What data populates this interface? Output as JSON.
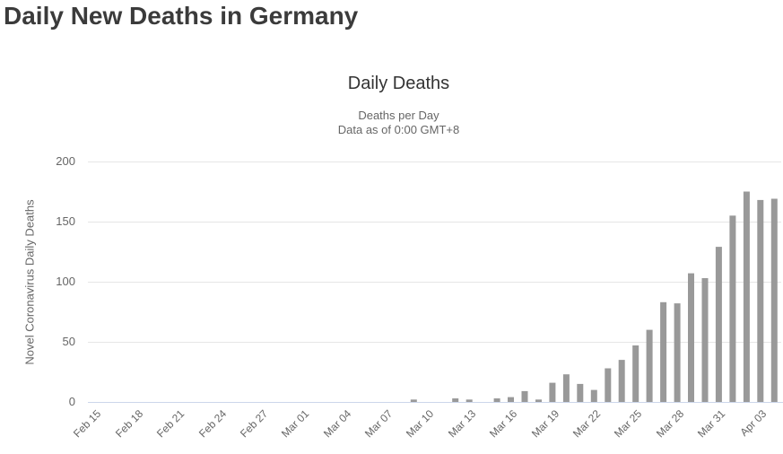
{
  "page": {
    "title": "Daily New Deaths in Germany"
  },
  "chart": {
    "title": "Daily Deaths",
    "subtitle_line1": "Deaths per Day",
    "subtitle_line2": "Data as of 0:00 GMT+8",
    "y_axis_title": "Novel Coronavirus Daily Deaths",
    "colors": {
      "bar": "#999999",
      "grid": "#e6e6e6",
      "axis_line": "#ccd6eb",
      "label_text": "#666666",
      "title_text": "#333333",
      "page_title_text": "#3b3b3b",
      "background": "#ffffff"
    }
  },
  "chart_data": {
    "type": "bar",
    "title": "Daily Deaths",
    "subtitle": "Deaths per Day - Data as of 0:00 GMT+8",
    "xlabel": "",
    "ylabel": "Novel Coronavirus Daily Deaths",
    "ylim": [
      0,
      200
    ],
    "yticks": [
      0,
      50,
      100,
      150,
      200
    ],
    "grid": true,
    "legend": false,
    "x_tick_interval": 3,
    "x_tick_labels": [
      "Feb 15",
      "Feb 18",
      "Feb 21",
      "Feb 24",
      "Feb 27",
      "Mar 01",
      "Mar 04",
      "Mar 07",
      "Mar 10",
      "Mar 13",
      "Mar 16",
      "Mar 19",
      "Mar 22",
      "Mar 25",
      "Mar 28",
      "Mar 31",
      "Apr 03"
    ],
    "categories": [
      "Feb 15",
      "Feb 16",
      "Feb 17",
      "Feb 18",
      "Feb 19",
      "Feb 20",
      "Feb 21",
      "Feb 22",
      "Feb 23",
      "Feb 24",
      "Feb 25",
      "Feb 26",
      "Feb 27",
      "Feb 28",
      "Feb 29",
      "Mar 01",
      "Mar 02",
      "Mar 03",
      "Mar 04",
      "Mar 05",
      "Mar 06",
      "Mar 07",
      "Mar 08",
      "Mar 09",
      "Mar 10",
      "Mar 11",
      "Mar 12",
      "Mar 13",
      "Mar 14",
      "Mar 15",
      "Mar 16",
      "Mar 17",
      "Mar 18",
      "Mar 19",
      "Mar 20",
      "Mar 21",
      "Mar 22",
      "Mar 23",
      "Mar 24",
      "Mar 25",
      "Mar 26",
      "Mar 27",
      "Mar 28",
      "Mar 29",
      "Mar 30",
      "Mar 31",
      "Apr 01",
      "Apr 02",
      "Apr 03",
      "Apr 04"
    ],
    "values": [
      0,
      0,
      0,
      0,
      0,
      0,
      0,
      0,
      0,
      0,
      0,
      0,
      0,
      0,
      0,
      0,
      0,
      0,
      0,
      0,
      0,
      0,
      0,
      2,
      0,
      0,
      3,
      2,
      0,
      3,
      4,
      9,
      2,
      16,
      23,
      15,
      10,
      28,
      35,
      47,
      60,
      83,
      82,
      107,
      103,
      129,
      155,
      175,
      168,
      169
    ]
  }
}
